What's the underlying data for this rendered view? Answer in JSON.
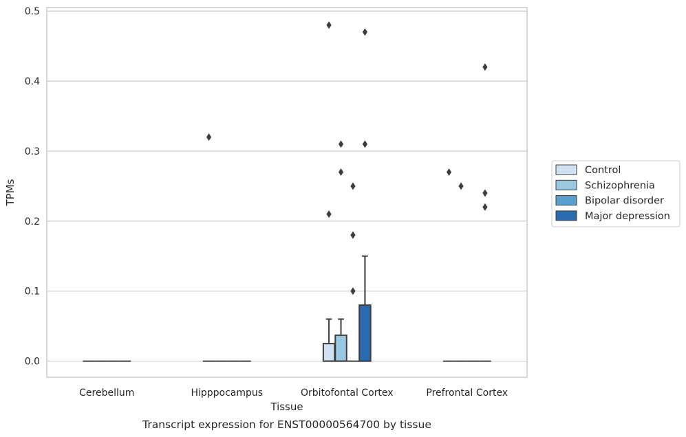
{
  "chart_data": {
    "type": "box",
    "title": "",
    "caption": "Transcript expression for ENST00000564700 by tissue",
    "xlabel": "Tissue",
    "ylabel": "TPMs",
    "ylim": [
      -0.023,
      0.505
    ],
    "yticks": [
      "0.0",
      "0.1",
      "0.2",
      "0.3",
      "0.4",
      "0.5"
    ],
    "categories": [
      "Cerebellum",
      "Hipppocampus",
      "Orbitofontal Cortex",
      "Prefrontal Cortex"
    ],
    "grid": "horizontal",
    "legend_position": "right-center",
    "series": [
      {
        "name": "Control",
        "color": "#d0e1f2",
        "boxes": [
          {
            "category": "Cerebellum",
            "q1": 0,
            "median": 0,
            "q3": 0,
            "whisker_low": 0,
            "whisker_high": 0,
            "outliers": []
          },
          {
            "category": "Hipppocampus",
            "q1": 0,
            "median": 0,
            "q3": 0,
            "whisker_low": 0,
            "whisker_high": 0,
            "outliers": [
              0.32
            ]
          },
          {
            "category": "Orbitofontal Cortex",
            "q1": 0,
            "median": 0,
            "q3": 0.025,
            "whisker_low": 0,
            "whisker_high": 0.06,
            "outliers": [
              0.21,
              0.48
            ]
          },
          {
            "category": "Prefrontal Cortex",
            "q1": 0,
            "median": 0,
            "q3": 0,
            "whisker_low": 0,
            "whisker_high": 0,
            "outliers": [
              0.27
            ]
          }
        ]
      },
      {
        "name": "Schizophrenia",
        "color": "#9ac8e0",
        "boxes": [
          {
            "category": "Cerebellum",
            "q1": 0,
            "median": 0,
            "q3": 0,
            "whisker_low": 0,
            "whisker_high": 0,
            "outliers": []
          },
          {
            "category": "Hipppocampus",
            "q1": 0,
            "median": 0,
            "q3": 0,
            "whisker_low": 0,
            "whisker_high": 0,
            "outliers": []
          },
          {
            "category": "Orbitofontal Cortex",
            "q1": 0,
            "median": 0,
            "q3": 0.037,
            "whisker_low": 0,
            "whisker_high": 0.06,
            "outliers": [
              0.27,
              0.31
            ]
          },
          {
            "category": "Prefrontal Cortex",
            "q1": 0,
            "median": 0,
            "q3": 0,
            "whisker_low": 0,
            "whisker_high": 0,
            "outliers": [
              0.25
            ]
          }
        ]
      },
      {
        "name": "Bipolar disorder",
        "color": "#5a9fcd",
        "boxes": [
          {
            "category": "Cerebellum",
            "q1": 0,
            "median": 0,
            "q3": 0,
            "whisker_low": 0,
            "whisker_high": 0,
            "outliers": []
          },
          {
            "category": "Hipppocampus",
            "q1": 0,
            "median": 0,
            "q3": 0,
            "whisker_low": 0,
            "whisker_high": 0,
            "outliers": []
          },
          {
            "category": "Orbitofontal Cortex",
            "q1": 0,
            "median": 0,
            "q3": 0,
            "whisker_low": 0,
            "whisker_high": 0,
            "outliers": [
              0.1,
              0.18,
              0.25
            ]
          },
          {
            "category": "Prefrontal Cortex",
            "q1": 0,
            "median": 0,
            "q3": 0,
            "whisker_low": 0,
            "whisker_high": 0,
            "outliers": []
          }
        ]
      },
      {
        "name": "Major depression",
        "color": "#2a6aae",
        "boxes": [
          {
            "category": "Cerebellum",
            "q1": 0,
            "median": 0,
            "q3": 0,
            "whisker_low": 0,
            "whisker_high": 0,
            "outliers": []
          },
          {
            "category": "Hipppocampus",
            "q1": 0,
            "median": 0,
            "q3": 0,
            "whisker_low": 0,
            "whisker_high": 0,
            "outliers": []
          },
          {
            "category": "Orbitofontal Cortex",
            "q1": 0,
            "median": 0,
            "q3": 0.08,
            "whisker_low": 0,
            "whisker_high": 0.15,
            "outliers": [
              0.31,
              0.47
            ]
          },
          {
            "category": "Prefrontal Cortex",
            "q1": 0,
            "median": 0,
            "q3": 0,
            "whisker_low": 0,
            "whisker_high": 0,
            "outliers": [
              0.22,
              0.24,
              0.42
            ]
          }
        ]
      }
    ]
  }
}
